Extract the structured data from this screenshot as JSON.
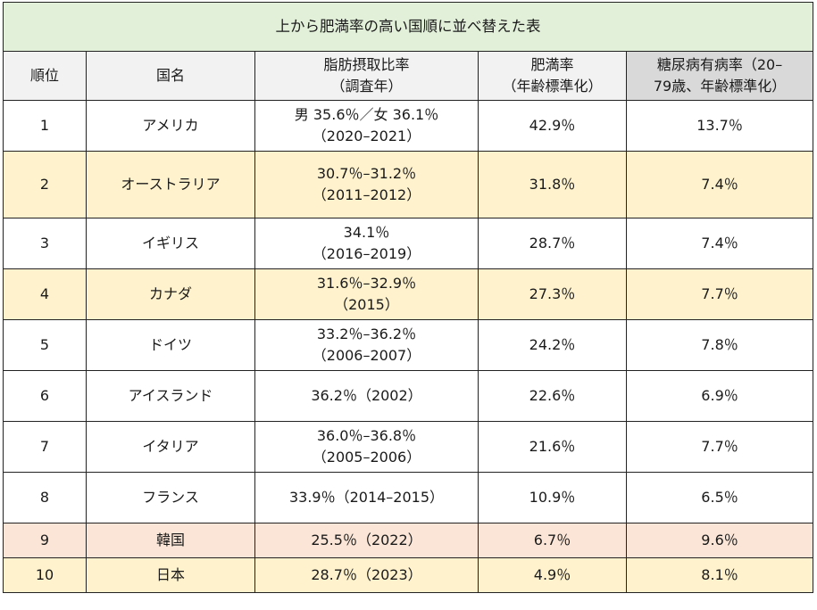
{
  "title": "上から肥満率の高い国順に並べ替えた表",
  "headers": {
    "rank": "順位",
    "country": "国名",
    "fat_line1": "脂肪摂取比率",
    "fat_line2": "（調査年）",
    "obesity_line1": "肥満率",
    "obesity_line2": "（年齢標準化）",
    "diabetes_line1": "糖尿病有病率（20–",
    "diabetes_line2": "79歳、年齢標準化）"
  },
  "rows": [
    {
      "rank": "1",
      "country": "アメリカ",
      "fat1": "男 35.6％／女 36.1％",
      "fat2": "（2020–2021）",
      "obesity": "42.9％",
      "diabetes": "13.7％"
    },
    {
      "rank": "2",
      "country": "オーストラリア",
      "fat1": "30.7％–31.2％",
      "fat2": "（2011–2012）",
      "obesity": "31.8％",
      "diabetes": "7.4％"
    },
    {
      "rank": "3",
      "country": "イギリス",
      "fat1": "34.1％",
      "fat2": "（2016–2019）",
      "obesity": "28.7％",
      "diabetes": "7.4％"
    },
    {
      "rank": "4",
      "country": "カナダ",
      "fat1": "31.6％–32.9％",
      "fat2": "（2015）",
      "obesity": "27.3％",
      "diabetes": "7.7％"
    },
    {
      "rank": "5",
      "country": "ドイツ",
      "fat1": "33.2％–36.2％",
      "fat2": "（2006–2007）",
      "obesity": "24.2％",
      "diabetes": "7.8％"
    },
    {
      "rank": "6",
      "country": "アイスランド",
      "fat1": "36.2％（2002）",
      "obesity": "22.6％",
      "diabetes": "6.9％"
    },
    {
      "rank": "7",
      "country": "イタリア",
      "fat1": "36.0％–36.8％",
      "fat2": "（2005–2006）",
      "obesity": "21.6％",
      "diabetes": "7.7％"
    },
    {
      "rank": "8",
      "country": "フランス",
      "fat1": "33.9％（2014–2015）",
      "obesity": "10.9％",
      "diabetes": "6.5％"
    },
    {
      "rank": "9",
      "country": "韓国",
      "fat1": "25.5％（2022）",
      "obesity": "6.7％",
      "diabetes": "9.6％"
    },
    {
      "rank": "10",
      "country": "日本",
      "fat1": "28.7％（2023）",
      "obesity": "4.9％",
      "diabetes": "8.1％"
    }
  ],
  "colors": {
    "title_bg": "#e2f0d9",
    "header_bg": "#f2f2f2",
    "header_gray_bg": "#d9d9d9",
    "highlight_yellow": "#fff2cc",
    "highlight_pink": "#fbe5d6"
  }
}
